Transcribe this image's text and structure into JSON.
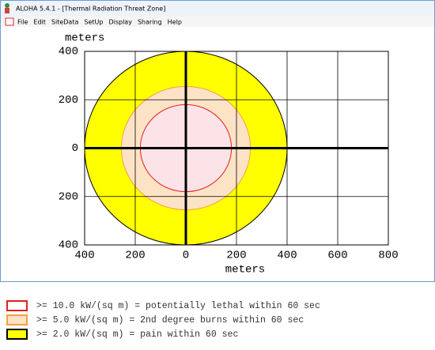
{
  "window": {
    "title": "ALOHA 5.4.1 - [Thermal Radiation Threat Zone]",
    "menu": [
      "File",
      "Edit",
      "SiteData",
      "SetUp",
      "Display",
      "Sharing",
      "Help"
    ]
  },
  "chart_data": {
    "type": "threat-zone",
    "y_label": "meters",
    "x_label": "meters",
    "xlim": [
      -400,
      800
    ],
    "xticks": [
      {
        "value": -400,
        "label": "400"
      },
      {
        "value": -200,
        "label": "200"
      },
      0,
      200,
      400,
      600,
      800
    ],
    "ylim": [
      -400,
      400
    ],
    "yticks": [
      {
        "value": 400,
        "label": "400"
      },
      200,
      0,
      {
        "value": -200,
        "label": "200"
      },
      {
        "value": -400,
        "label": "400"
      }
    ],
    "grid": true,
    "zones": [
      {
        "label": ">= 10.0 kW/(sq m) = potentially lethal within 60 sec",
        "color": "#e02020",
        "fill": "#fbe3e8",
        "radius": 180
      },
      {
        "label": ">= 5.0 kW/(sq m) = 2nd degree burns within 60 sec",
        "color": "#f5a040",
        "fill": "#fde3c6",
        "radius": 255
      },
      {
        "label": ">= 2.0 kW/(sq m) = pain within 60 sec",
        "color": "#000000",
        "fill": "#ffff00",
        "radius": 400
      }
    ]
  }
}
